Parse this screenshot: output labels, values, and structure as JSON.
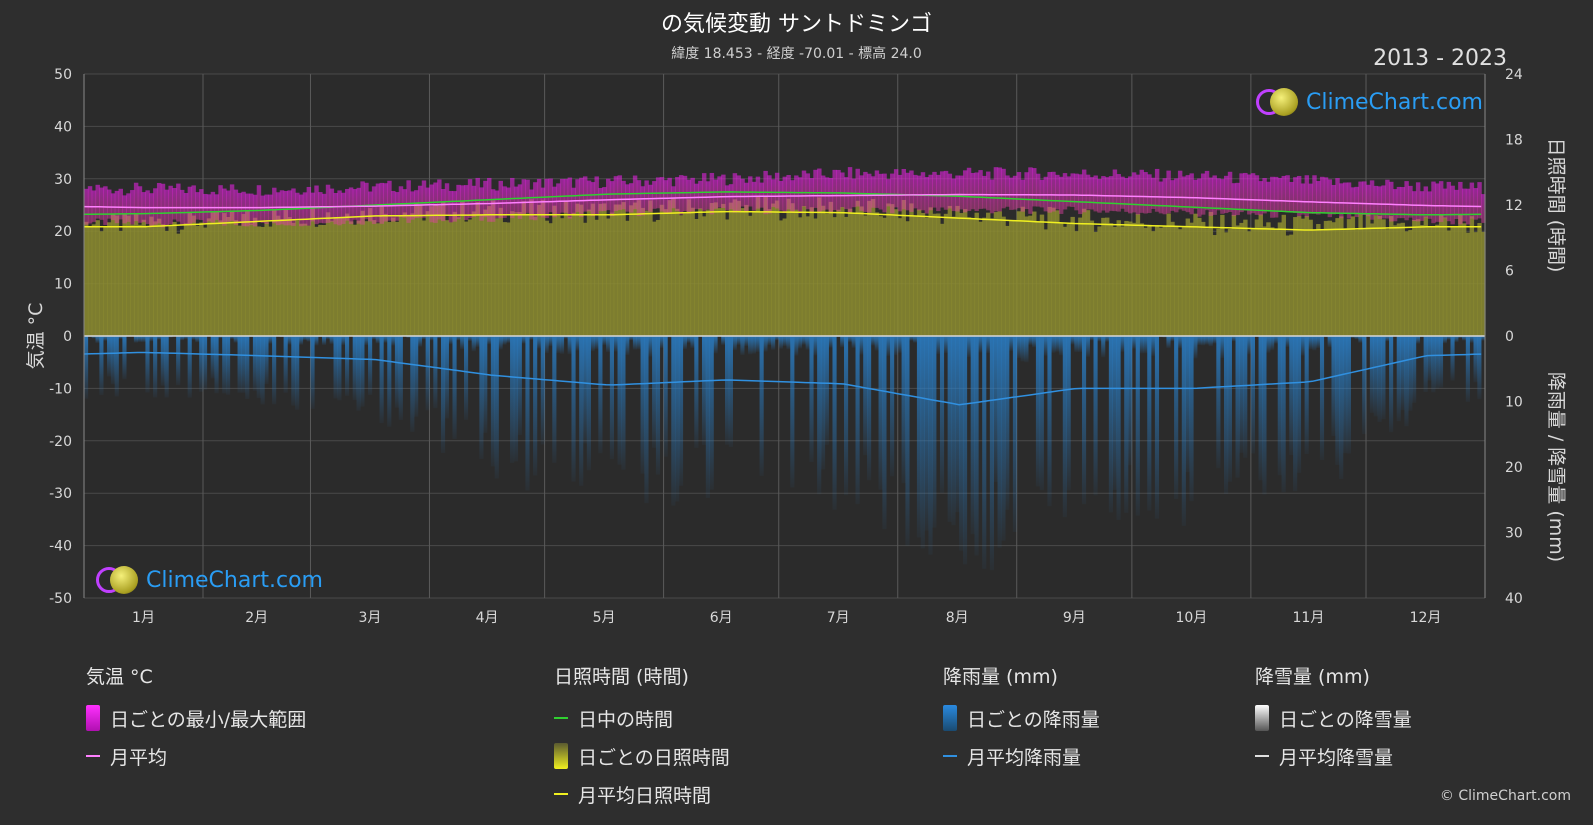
{
  "title": "の気候変動 サントドミンゴ",
  "subtitle": "緯度 18.453 - 経度 -70.01 - 標高 24.0",
  "years": "2013 - 2023",
  "copyright": "© ClimeChart.com",
  "logo_text": "ClimeChart.com",
  "colors": {
    "background": "#2e2e2e",
    "temp_range": "#d020d0",
    "temp_mean": "#ff80ff",
    "daylight": "#30d030",
    "sunshine_fill": "#8c8c30",
    "sunshine_mean": "#f0f020",
    "rain": "#2080d0",
    "rain_mean": "#3090e0",
    "snow_mean": "#e0e0e0",
    "logo": "#2a9df4"
  },
  "legend": {
    "temp": {
      "head": "気温 °C",
      "range": "日ごとの最小/最大範囲",
      "mean": "月平均"
    },
    "sun": {
      "head": "日照時間 (時間)",
      "daylight": "日中の時間",
      "daily": "日ごとの日照時間",
      "mean": "月平均日照時間"
    },
    "rain": {
      "head": "降雨量 (mm)",
      "daily": "日ごとの降雨量",
      "mean": "月平均降雨量"
    },
    "snow": {
      "head": "降雪量 (mm)",
      "daily": "日ごとの降雪量",
      "mean": "月平均降雪量"
    }
  },
  "chart_data": {
    "type": "area",
    "left_axis": {
      "label": "気温 °C",
      "range": [
        -50,
        50
      ],
      "ticks": [
        "50",
        "40",
        "30",
        "20",
        "10",
        "0",
        "-10",
        "-20",
        "-30",
        "-40",
        "-50"
      ]
    },
    "right_axis_top": {
      "label": "日照時間 (時間)",
      "range": [
        0,
        24
      ],
      "ticks": [
        "24",
        "18",
        "12",
        "6",
        "0"
      ]
    },
    "right_axis_bottom": {
      "label": "降雨量 / 降雪量 (mm)",
      "range": [
        0,
        40
      ],
      "ticks": [
        "0",
        "10",
        "20",
        "30",
        "40"
      ]
    },
    "categories": [
      "1月",
      "2月",
      "3月",
      "4月",
      "5月",
      "6月",
      "7月",
      "8月",
      "9月",
      "10月",
      "11月",
      "12月"
    ],
    "grid": true,
    "series": [
      {
        "name": "月平均",
        "unit": "°C",
        "values": [
          24.5,
          24.5,
          24.8,
          25.3,
          26.0,
          26.6,
          26.8,
          27.0,
          26.9,
          26.4,
          25.6,
          24.9
        ]
      },
      {
        "name": "日ごとの最小/最大範囲",
        "unit": "°C",
        "min": [
          21.5,
          21.5,
          22.0,
          22.5,
          23.5,
          24.0,
          24.0,
          24.0,
          24.0,
          23.5,
          23.0,
          22.0
        ],
        "max": [
          28.0,
          28.0,
          28.5,
          29.0,
          29.5,
          30.0,
          31.0,
          31.0,
          31.0,
          30.5,
          29.5,
          28.5
        ]
      },
      {
        "name": "日中の時間",
        "unit": "h",
        "values": [
          11.2,
          11.5,
          12.0,
          12.5,
          13.0,
          13.2,
          13.1,
          12.8,
          12.3,
          11.8,
          11.3,
          11.1
        ]
      },
      {
        "name": "月平均日照時間",
        "unit": "h",
        "values": [
          10.0,
          10.5,
          11.0,
          11.1,
          11.1,
          11.4,
          11.3,
          10.8,
          10.3,
          10.0,
          9.7,
          10.0
        ]
      },
      {
        "name": "月平均降雨量",
        "unit": "mm",
        "values": [
          2.5,
          3.0,
          3.6,
          6.0,
          7.5,
          6.7,
          7.3,
          10.5,
          8.0,
          8.0,
          7.0,
          3.0
        ]
      },
      {
        "name": "月平均降雪量",
        "unit": "mm",
        "values": [
          0,
          0,
          0,
          0,
          0,
          0,
          0,
          0,
          0,
          0,
          0,
          0
        ]
      }
    ]
  }
}
